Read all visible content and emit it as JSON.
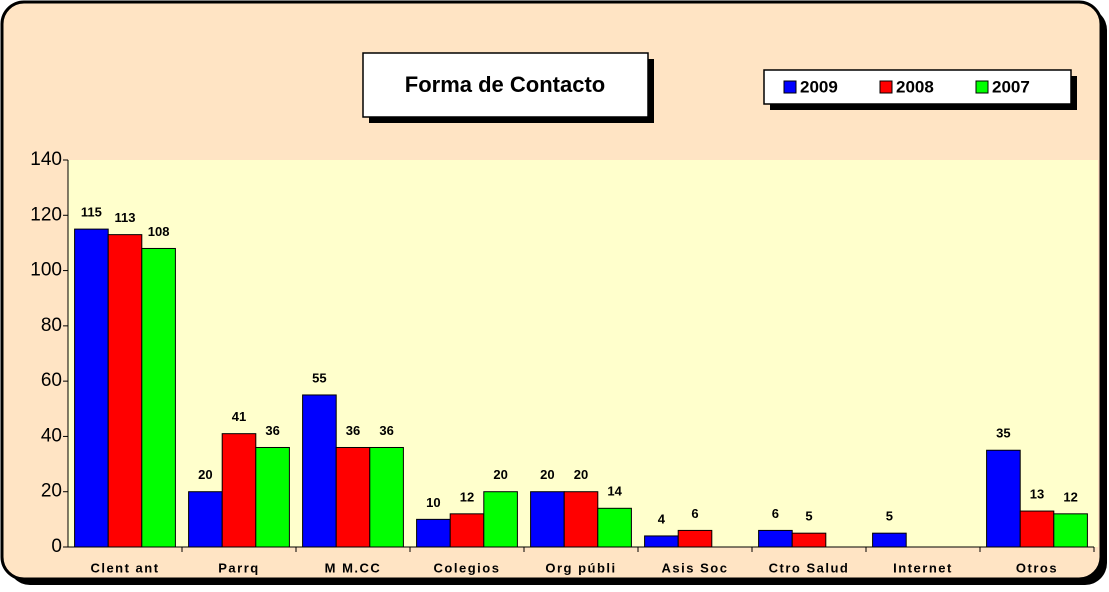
{
  "chart_data": {
    "type": "bar",
    "title": "Forma de Contacto",
    "categories": [
      "Clent ant",
      "Parrq",
      "M M.CC",
      "Colegios",
      "Org públi",
      "Asis Soc",
      "Ctro Salud",
      "Internet",
      "Otros"
    ],
    "series": [
      {
        "name": "2009",
        "color": "#0000ff",
        "values": [
          115,
          20,
          55,
          10,
          20,
          4,
          6,
          5,
          35
        ]
      },
      {
        "name": "2008",
        "color": "#ff0000",
        "values": [
          113,
          41,
          36,
          12,
          20,
          6,
          5,
          null,
          13
        ]
      },
      {
        "name": "2007",
        "color": "#00ff00",
        "values": [
          108,
          36,
          36,
          20,
          14,
          null,
          null,
          null,
          12
        ]
      }
    ],
    "ylim": [
      0,
      140
    ],
    "yticks": [
      0,
      20,
      40,
      60,
      80,
      100,
      120,
      140
    ]
  }
}
